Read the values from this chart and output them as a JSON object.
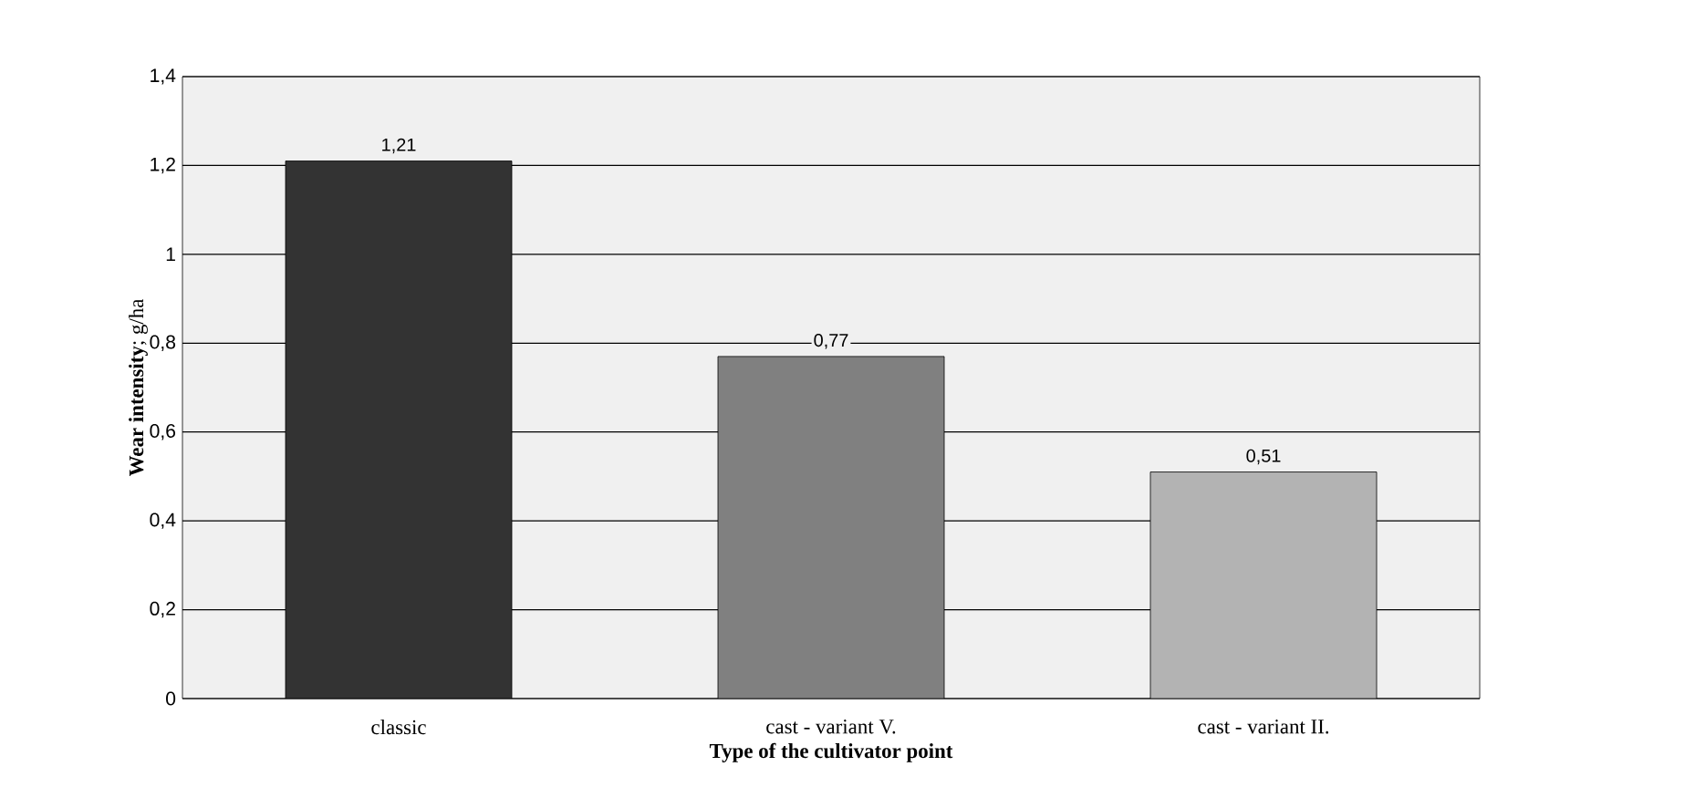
{
  "chart_data": {
    "type": "bar",
    "xlabel": "Type of the cultivator point",
    "ylabel": "**Wear intensity**; g/ha",
    "categories": [
      "classic",
      "cast - variant V.",
      "cast - variant II."
    ],
    "values": [
      1.21,
      0.77,
      0.51
    ],
    "colors": [
      "#333333",
      "#808080",
      "#b3b3b3"
    ],
    "value_labels": [
      "1,21",
      "0,77",
      "0,51"
    ],
    "ylim": [
      0,
      1.4
    ],
    "yticks": [
      0,
      {
        "value": 0.2,
        "label": "0,2"
      },
      {
        "value": 0.4,
        "label": "0,4"
      },
      {
        "value": 0.6,
        "label": "0,6"
      },
      {
        "value": 0.8,
        "label": "0,8"
      },
      1,
      {
        "value": 1.2,
        "label": "1,2"
      },
      {
        "value": 1.4,
        "label": "1,4"
      }
    ],
    "grid": "y"
  }
}
